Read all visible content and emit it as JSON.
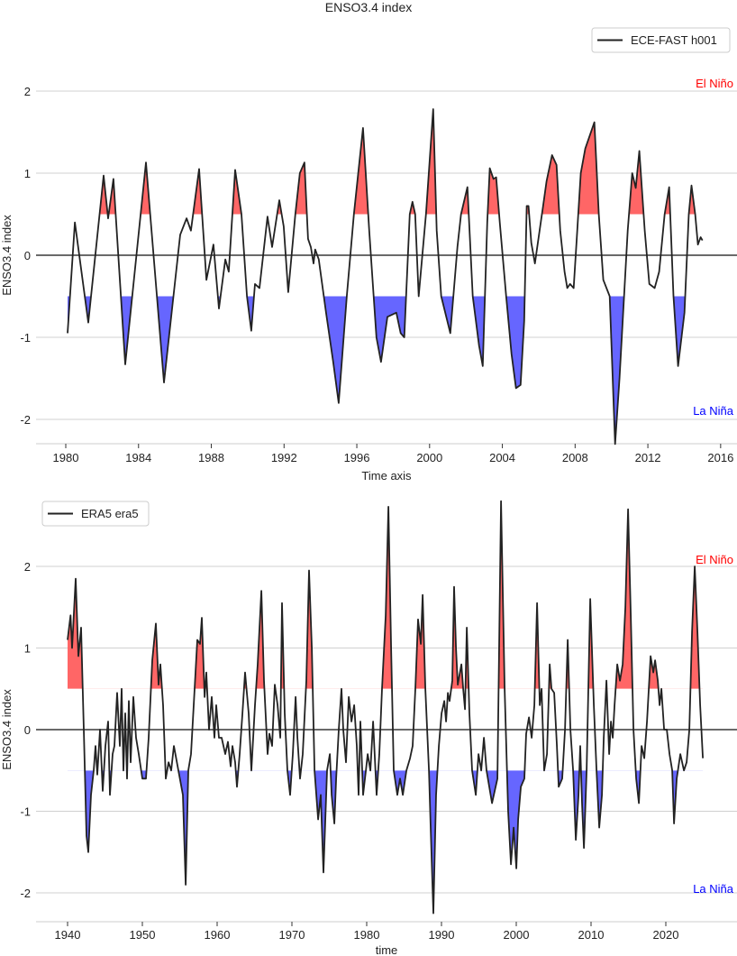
{
  "title": "ENSO3.4 index",
  "colors": {
    "el_nino": "#ff6666",
    "la_nina": "#6666ff",
    "line": "#222222",
    "el_nino_text": "#ff0000",
    "la_nina_text": "#0000ff"
  },
  "chart_data": [
    {
      "type": "line",
      "title": "ENSO3.4 index",
      "xlabel": "Time axis",
      "ylabel": "ENSO3.4 index",
      "legend": {
        "entries": [
          "ECE-FAST h001"
        ],
        "placement": "top-right"
      },
      "annotations": {
        "el_nino": "El Niño",
        "la_nina": "La Niña"
      },
      "thresholds": [
        0.5,
        -0.5
      ],
      "grid": true,
      "ylim": [
        -2.35,
        2.8
      ],
      "xlim": [
        1978.4,
        2016.4
      ],
      "yticks": [
        "-2",
        "-1",
        "0",
        "1",
        "2"
      ],
      "xticks": [
        "1980",
        "1984",
        "1988",
        "1992",
        "1996",
        "2000",
        "2004",
        "2008",
        "2012",
        "2016"
      ],
      "series": [
        {
          "name": "ECE-FAST h001",
          "x": [
            1980.1,
            1980.5,
            1981.24,
            1982.08,
            1982.33,
            1982.62,
            1983.27,
            1984.41,
            1985.4,
            1986.29,
            1986.64,
            1986.88,
            1987.33,
            1987.73,
            1988.12,
            1988.42,
            1988.77,
            1988.96,
            1989.31,
            1989.66,
            1989.96,
            1990.2,
            1990.4,
            1990.65,
            1991.09,
            1991.34,
            1991.74,
            1991.98,
            1992.23,
            1992.62,
            1992.87,
            1993.12,
            1993.32,
            1993.47,
            1993.62,
            1993.71,
            1993.91,
            1994.31,
            1994.7,
            1995.0,
            1995.45,
            1995.84,
            1996.34,
            1996.68,
            1997.08,
            1997.33,
            1997.68,
            1998.17,
            1998.41,
            1998.61,
            1998.91,
            1999.06,
            1999.21,
            1999.4,
            1999.8,
            2000.2,
            2000.39,
            2000.64,
            2001.14,
            2001.53,
            2001.73,
            2002.08,
            2002.37,
            2002.72,
            2002.92,
            2003.17,
            2003.31,
            2003.51,
            2003.66,
            2003.86,
            2004.21,
            2004.5,
            2004.75,
            2005.0,
            2005.2,
            2005.34,
            2005.44,
            2005.59,
            2005.79,
            2006.24,
            2006.43,
            2006.73,
            2006.98,
            2007.18,
            2007.42,
            2007.57,
            2007.72,
            2007.92,
            2008.12,
            2008.31,
            2008.56,
            2009.06,
            2009.3,
            2009.55,
            2009.9,
            2010.2,
            2010.44,
            2010.89,
            2011.14,
            2011.33,
            2011.53,
            2011.83,
            2012.08,
            2012.37,
            2012.62,
            2012.92,
            2013.17,
            2013.41,
            2013.66,
            2014.01,
            2014.25,
            2014.4,
            2014.6,
            2014.75,
            2014.9,
            2015.0
          ],
          "y": [
            -0.95,
            0.4,
            -0.82,
            0.97,
            0.45,
            0.93,
            -1.33,
            1.13,
            -1.55,
            0.25,
            0.45,
            0.3,
            1.05,
            -0.3,
            0.13,
            -0.65,
            -0.05,
            -0.2,
            1.04,
            0.5,
            -0.5,
            -0.92,
            -0.35,
            -0.4,
            0.47,
            0.1,
            0.67,
            0.35,
            -0.45,
            0.5,
            1.0,
            1.13,
            0.2,
            0.1,
            -0.1,
            0.07,
            -0.05,
            -0.7,
            -1.3,
            -1.8,
            -0.5,
            0.5,
            1.55,
            0.3,
            -1.0,
            -1.3,
            -0.75,
            -0.7,
            -0.95,
            -1.0,
            0.5,
            0.65,
            0.5,
            -0.5,
            0.5,
            1.78,
            0.3,
            -0.5,
            -0.95,
            0.1,
            0.5,
            0.83,
            -0.5,
            -1.1,
            -1.35,
            0.4,
            1.06,
            0.93,
            0.95,
            0.4,
            -0.5,
            -1.2,
            -1.62,
            -1.58,
            -0.8,
            0.6,
            0.6,
            0.15,
            -0.1,
            0.6,
            0.9,
            1.22,
            1.1,
            0.3,
            -0.2,
            -0.4,
            -0.35,
            -0.4,
            0.3,
            1.0,
            1.3,
            1.62,
            0.5,
            -0.3,
            -0.5,
            -2.3,
            -1.5,
            0.3,
            1.0,
            0.82,
            1.27,
            0.3,
            -0.35,
            -0.4,
            -0.2,
            0.5,
            0.83,
            -0.5,
            -1.35,
            -0.7,
            0.5,
            0.85,
            0.5,
            0.13,
            0.22,
            0.18
          ]
        }
      ]
    },
    {
      "type": "line",
      "title": "",
      "xlabel": "time",
      "ylabel": "ENSO3.4 index",
      "legend": {
        "entries": [
          "ERA5 era5"
        ],
        "placement": "top-left"
      },
      "annotations": {
        "el_nino": "El Niño",
        "la_nina": "La Niña"
      },
      "thresholds": [
        0.5,
        -0.5
      ],
      "grid": true,
      "ylim": [
        -2.35,
        2.95
      ],
      "xlim": [
        1935.6,
        2028.6
      ],
      "yticks": [
        "-2",
        "-1",
        "0",
        "1",
        "2"
      ],
      "xticks": [
        "1940",
        "1950",
        "1960",
        "1970",
        "1980",
        "1990",
        "2000",
        "2010",
        "2020"
      ],
      "series": [
        {
          "name": "ERA5 era5",
          "x": [
            1940.0,
            1940.4,
            1940.6,
            1941.08,
            1941.45,
            1941.81,
            1942.17,
            1942.53,
            1942.77,
            1943.13,
            1943.49,
            1943.74,
            1943.98,
            1944.34,
            1944.7,
            1945.06,
            1945.42,
            1945.66,
            1946.02,
            1946.27,
            1946.63,
            1946.99,
            1947.23,
            1947.47,
            1947.71,
            1947.95,
            1948.19,
            1948.43,
            1948.8,
            1949.16,
            1949.52,
            1950.0,
            1950.48,
            1950.84,
            1951.33,
            1951.81,
            1952.17,
            1952.41,
            1952.77,
            1953.13,
            1953.5,
            1953.86,
            1954.22,
            1954.82,
            1955.42,
            1955.79,
            1956.15,
            1956.51,
            1956.99,
            1957.35,
            1957.71,
            1957.95,
            1958.32,
            1958.56,
            1958.92,
            1959.28,
            1959.64,
            1959.88,
            1960.24,
            1960.6,
            1961.08,
            1961.45,
            1961.81,
            1962.05,
            1962.41,
            1962.65,
            1963.01,
            1963.38,
            1963.74,
            1964.22,
            1964.58,
            1965.06,
            1965.42,
            1965.91,
            1966.27,
            1966.75,
            1966.99,
            1967.35,
            1967.71,
            1968.08,
            1968.44,
            1968.68,
            1969.04,
            1969.4,
            1969.76,
            1970.12,
            1970.49,
            1970.73,
            1971.09,
            1971.45,
            1971.93,
            1972.29,
            1972.66,
            1973.02,
            1973.5,
            1973.86,
            1974.22,
            1974.7,
            1975.07,
            1975.31,
            1975.67,
            1975.91,
            1976.27,
            1976.63,
            1976.87,
            1977.23,
            1977.6,
            1977.96,
            1978.32,
            1978.68,
            1978.92,
            1979.16,
            1979.52,
            1979.89,
            1980.13,
            1980.49,
            1980.85,
            1981.33,
            1981.69,
            1982.05,
            1982.54,
            1982.9,
            1983.26,
            1983.62,
            1984.1,
            1984.46,
            1984.83,
            1985.31,
            1985.79,
            1986.15,
            1986.51,
            1986.87,
            1987.24,
            1987.48,
            1987.84,
            1988.32,
            1988.56,
            1988.92,
            1989.28,
            1989.65,
            1990.01,
            1990.37,
            1990.61,
            1990.85,
            1991.09,
            1991.45,
            1991.69,
            1991.94,
            1992.18,
            1992.66,
            1992.9,
            1993.14,
            1993.38,
            1993.74,
            1994.1,
            1994.59,
            1994.95,
            1995.31,
            1995.67,
            1996.03,
            1996.76,
            1997.48,
            1997.96,
            1998.44,
            1998.92,
            1999.29,
            1999.65,
            2000.01,
            2000.25,
            2000.61,
            2001.09,
            2001.33,
            2001.7,
            2002.06,
            2002.42,
            2002.78,
            2003.14,
            2003.38,
            2003.74,
            2004.11,
            2004.47,
            2004.71,
            2005.07,
            2005.43,
            2005.67,
            2006.15,
            2006.52,
            2006.88,
            2007.24,
            2007.6,
            2007.96,
            2008.32,
            2008.56,
            2008.8,
            2009.05,
            2009.41,
            2009.89,
            2010.37,
            2010.73,
            2011.1,
            2011.46,
            2011.7,
            2012.06,
            2012.42,
            2012.66,
            2012.9,
            2013.14,
            2013.51,
            2013.87,
            2014.23,
            2014.59,
            2014.95,
            2015.31,
            2015.67,
            2016.04,
            2016.4,
            2016.76,
            2017.12,
            2017.48,
            2017.96,
            2018.33,
            2018.57,
            2018.93,
            2019.17,
            2019.41,
            2019.77,
            2020.13,
            2020.49,
            2020.86,
            2021.1,
            2021.46,
            2021.94,
            2022.42,
            2022.78,
            2023.15,
            2023.51,
            2023.87,
            2024.23,
            2024.59,
            2024.95
          ],
          "y": [
            1.1,
            1.4,
            1.0,
            1.85,
            0.9,
            1.25,
            0.0,
            -1.3,
            -1.5,
            -0.8,
            -0.5,
            -0.2,
            -0.55,
            0.0,
            -0.75,
            -0.2,
            0.1,
            -0.8,
            -0.3,
            -0.2,
            0.45,
            -0.2,
            0.5,
            -0.5,
            0.2,
            -0.6,
            0.35,
            -0.4,
            0.4,
            -0.1,
            -0.3,
            -0.6,
            -0.6,
            -0.1,
            0.85,
            1.3,
            0.55,
            0.8,
            0.3,
            -0.6,
            -0.4,
            -0.5,
            -0.2,
            -0.5,
            -0.8,
            -1.9,
            -0.5,
            -0.3,
            0.5,
            1.1,
            1.05,
            1.37,
            0.4,
            0.7,
            0.0,
            0.4,
            -0.1,
            0.3,
            -0.1,
            -0.1,
            -0.3,
            -0.15,
            -0.45,
            -0.2,
            -0.4,
            -0.7,
            -0.3,
            0.2,
            0.7,
            0.2,
            -0.5,
            0.3,
            0.8,
            1.7,
            0.6,
            -0.3,
            -0.05,
            -0.2,
            0.55,
            0.3,
            -0.1,
            1.55,
            0.2,
            -0.5,
            -0.8,
            -0.3,
            0.4,
            -0.1,
            -0.6,
            -0.3,
            0.6,
            1.95,
            1.0,
            -0.5,
            -1.1,
            -0.8,
            -1.75,
            -0.5,
            -0.3,
            -0.8,
            -1.15,
            -0.6,
            0.0,
            0.5,
            0.0,
            -0.4,
            0.4,
            0.1,
            0.3,
            -0.2,
            -0.8,
            0.1,
            -0.8,
            -0.5,
            -0.3,
            -0.5,
            0.1,
            -0.8,
            -0.3,
            0.5,
            1.4,
            2.73,
            1.0,
            -0.5,
            -0.8,
            -0.6,
            -0.8,
            -0.5,
            -0.35,
            -0.2,
            0.5,
            1.35,
            1.05,
            1.65,
            0.5,
            -0.5,
            -1.2,
            -2.25,
            -0.8,
            -0.2,
            0.2,
            0.35,
            0.1,
            0.45,
            0.35,
            0.6,
            1.75,
            1.0,
            0.55,
            0.8,
            0.5,
            0.25,
            1.25,
            0.2,
            -0.5,
            -0.8,
            -0.3,
            -0.5,
            -0.1,
            -0.5,
            -0.9,
            -0.6,
            2.8,
            0.5,
            -1.0,
            -1.65,
            -1.2,
            -1.7,
            -1.1,
            -0.7,
            -0.6,
            -0.05,
            0.15,
            -0.1,
            0.3,
            1.55,
            0.3,
            0.5,
            -0.5,
            -0.3,
            0.8,
            0.5,
            0.45,
            -0.2,
            -0.7,
            -0.6,
            0.0,
            1.1,
            0.0,
            -0.5,
            -1.35,
            -0.8,
            -0.2,
            -0.9,
            -1.45,
            -0.5,
            1.6,
            0.3,
            -0.5,
            -1.2,
            -0.8,
            -0.1,
            0.6,
            -0.3,
            0.1,
            -0.1,
            0.3,
            0.8,
            0.6,
            0.8,
            1.5,
            2.7,
            1.4,
            0.0,
            -0.6,
            -0.9,
            -0.2,
            -0.35,
            0.1,
            0.9,
            0.7,
            0.85,
            0.6,
            0.3,
            0.5,
            0.0,
            0.0,
            -0.3,
            -0.5,
            -1.15,
            -0.6,
            -0.3,
            -0.5,
            -0.4,
            0.0,
            1.2,
            2.0,
            1.2,
            0.3,
            -0.35
          ]
        }
      ]
    }
  ]
}
